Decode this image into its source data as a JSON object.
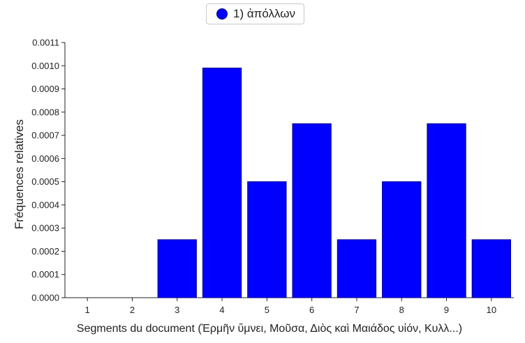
{
  "chart_data": {
    "type": "bar",
    "categories": [
      "1",
      "2",
      "3",
      "4",
      "5",
      "6",
      "7",
      "8",
      "9",
      "10"
    ],
    "series": [
      {
        "name": "1) ἀπόλλων",
        "values": [
          0,
          0,
          0.00025,
          0.00099,
          0.0005,
          0.00075,
          0.00025,
          0.0005,
          0.00075,
          0.00025
        ]
      }
    ],
    "xlabel": "Segments du document (Ἑρμῆν ὕμνει, Μοῦσα, Διὸς καὶ Μαιάδος υἱόν, Κυλλ...)",
    "ylabel": "Fréquences relatives",
    "ylim": [
      0,
      0.0011
    ],
    "yticks": [
      "0.0000",
      "0.0001",
      "0.0002",
      "0.0003",
      "0.0004",
      "0.0005",
      "0.0006",
      "0.0007",
      "0.0008",
      "0.0009",
      "0.0010",
      "0.0011"
    ],
    "legend_position": "top-center",
    "grid": false,
    "colors": {
      "bar_fill": "#0000ff",
      "bar_stroke": "#00008a"
    }
  }
}
